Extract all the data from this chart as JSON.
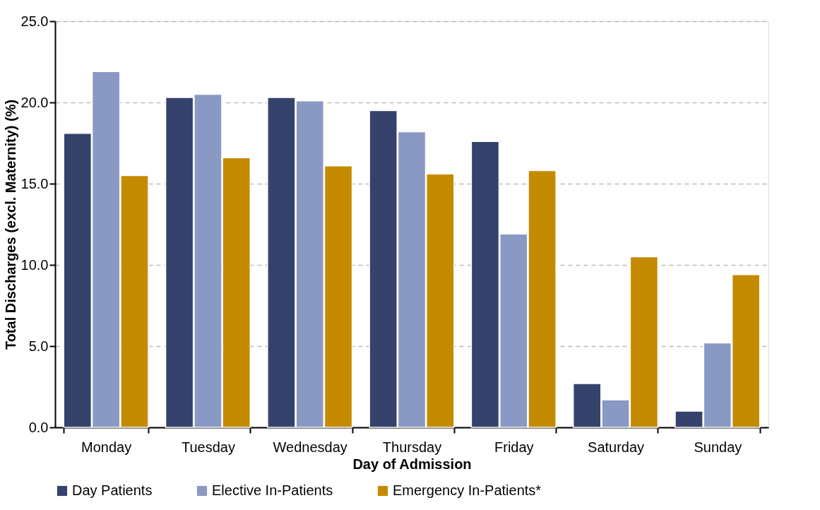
{
  "chart_data": {
    "type": "bar",
    "xlabel": "Day of Admission",
    "ylabel": "Total Discharges (excl. Maternity) (%)",
    "categories": [
      "Monday",
      "Tuesday",
      "Wednesday",
      "Thursday",
      "Friday",
      "Saturday",
      "Sunday"
    ],
    "series": [
      {
        "name": "Day Patients",
        "color": "#35426b",
        "values": [
          18.1,
          20.3,
          20.3,
          19.5,
          17.6,
          2.7,
          1.0
        ]
      },
      {
        "name": "Elective In-Patients",
        "color": "#8a99c4",
        "values": [
          21.9,
          20.5,
          20.1,
          18.2,
          11.9,
          1.7,
          5.2
        ]
      },
      {
        "name": "Emergency In-Patients*",
        "color": "#c48b00",
        "values": [
          15.5,
          16.6,
          16.1,
          15.6,
          15.8,
          10.5,
          9.4
        ]
      }
    ],
    "ylim": [
      0,
      25
    ],
    "yticks": [
      {
        "value": 0,
        "label": "0.0"
      },
      {
        "value": 5,
        "label": "5.0"
      },
      {
        "value": 10,
        "label": "10.0"
      },
      {
        "value": 15,
        "label": "15.0"
      },
      {
        "value": 20,
        "label": "20.0"
      },
      {
        "value": 25,
        "label": "25.0"
      }
    ],
    "grid": "y",
    "legend": "bottom"
  }
}
